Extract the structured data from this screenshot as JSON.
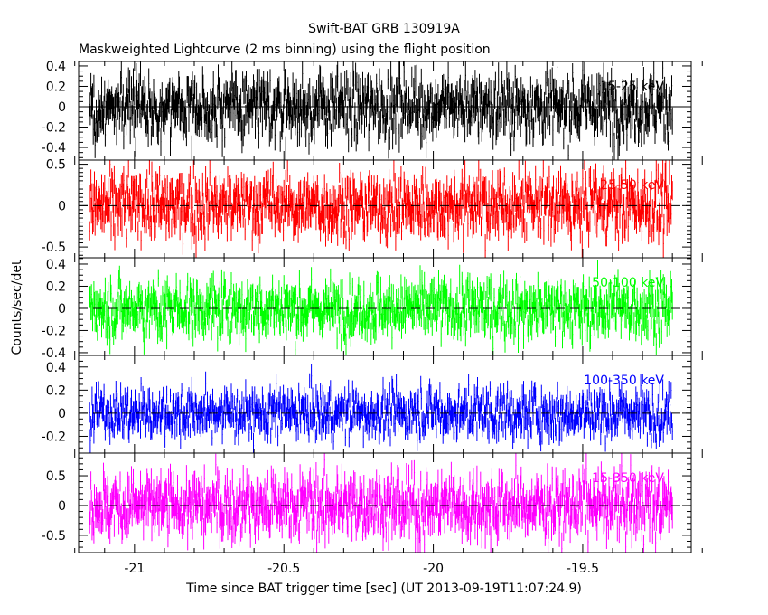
{
  "chart_data": {
    "type": "line",
    "title": "Swift-BAT GRB 130919A",
    "subtitle": "Maskweighted Lightcurve (2 ms binning) using the flight position",
    "xlabel": "Time since BAT trigger time [sec] (UT 2013-09-19T11:07:24.9)",
    "ylabel": "Counts/sec/det",
    "xlim": [
      -21.187,
      -19.137
    ],
    "x_ticks": [
      "-21",
      "-20.5",
      "-20",
      "-19.5"
    ],
    "x_tick_values": [
      -21,
      -20.5,
      -20,
      -19.5
    ],
    "data_x_range": [
      -21.15,
      -19.2
    ],
    "grid": false,
    "panels": [
      {
        "name": "15-25 keV",
        "color": "#000000",
        "ylim": [
          -0.524,
          0.444
        ],
        "y_ticks": [
          "0.4",
          "0.2",
          "0",
          "-0.2",
          "-0.4"
        ],
        "y_tick_values": [
          0.4,
          0.2,
          0,
          -0.2,
          -0.4
        ],
        "typical_amplitude": 0.15
      },
      {
        "name": "25-50 keV",
        "color": "#ff0000",
        "ylim": [
          -0.63,
          0.55
        ],
        "y_ticks": [
          "0.5",
          "0",
          "-0.5"
        ],
        "y_tick_values": [
          0.5,
          0,
          -0.5
        ],
        "typical_amplitude": 0.18
      },
      {
        "name": "50-100 keV",
        "color": "#00ff00",
        "ylim": [
          -0.425,
          0.457
        ],
        "y_ticks": [
          "0.4",
          "0.2",
          "0",
          "-0.2",
          "-0.4"
        ],
        "y_tick_values": [
          0.4,
          0.2,
          0,
          -0.2,
          -0.4
        ],
        "typical_amplitude": 0.12
      },
      {
        "name": "100-350 keV",
        "color": "#0000ff",
        "ylim": [
          -0.345,
          0.5
        ],
        "y_ticks": [
          "0.4",
          "0.2",
          "0",
          "-0.2"
        ],
        "y_tick_values": [
          0.4,
          0.2,
          0,
          -0.2
        ],
        "typical_amplitude": 0.1
      },
      {
        "name": "15-350 keV",
        "color": "#ff00ff",
        "ylim": [
          -0.79,
          0.88
        ],
        "y_ticks": [
          "0.5",
          "0",
          "-0.5"
        ],
        "y_tick_values": [
          0.5,
          0,
          -0.5
        ],
        "typical_amplitude": 0.25
      }
    ]
  }
}
